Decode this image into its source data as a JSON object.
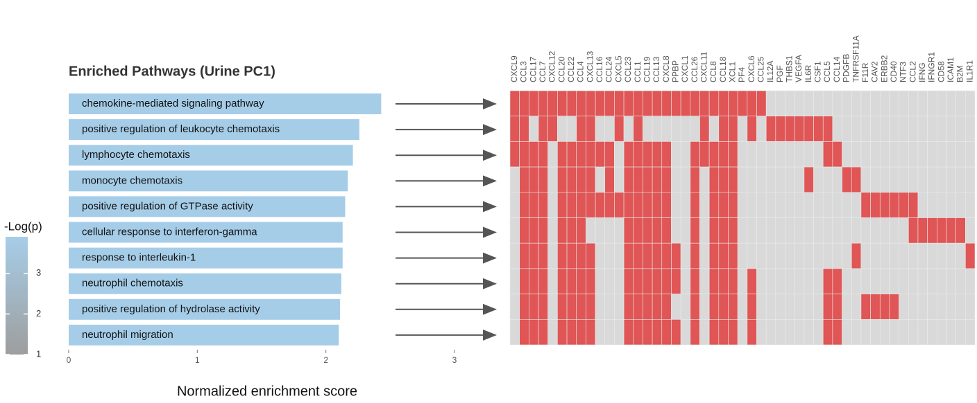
{
  "chart_data": [
    {
      "type": "barh",
      "title": "Enriched Pathways (Urine PC1)",
      "xlabel": "Normalized enrichment score",
      "categories": [
        "chemokine-mediated signaling pathway",
        "positive regulation of leukocyte chemotaxis",
        "lymphocyte chemotaxis",
        "monocyte chemotaxis",
        "positive regulation of GTPase activity",
        "cellular response to interferon-gamma",
        "response to interleukin-1",
        "neutrophil chemotaxis",
        "positive regulation of hydrolase activity",
        "neutrophil migration"
      ],
      "values": [
        2.43,
        2.26,
        2.21,
        2.17,
        2.15,
        2.13,
        2.13,
        2.12,
        2.11,
        2.1
      ],
      "color": "#a6cde8",
      "xlim": [
        0,
        3
      ],
      "xticks": [
        0,
        1,
        2,
        3
      ],
      "legend_title": "-Log(p)",
      "clim": [
        1,
        3.9
      ],
      "cticks": [
        1,
        2,
        3
      ],
      "ccolors": [
        "#9e9e9e",
        "#a6cde8"
      ]
    },
    {
      "type": "heatmap",
      "columns": [
        "CXCL9",
        "CCL3",
        "CCL17",
        "CCL7",
        "CXCL12",
        "CCL20",
        "CCL22",
        "CCL4",
        "CXCL13",
        "CCL16",
        "CCL24",
        "CXCL5",
        "CCL23",
        "CCL1",
        "CCL19",
        "CCL13",
        "CXCL8",
        "PPBP",
        "CXCL1",
        "CCL26",
        "CXCL11",
        "CCL8",
        "CCL18",
        "XCL1",
        "PF4",
        "CXCL6",
        "CCL25",
        "IL12A",
        "PGF",
        "THBS1",
        "VEGFA",
        "IL6R",
        "CSF1",
        "CCL5",
        "CCL14",
        "PDGFB",
        "TNFRSF11A",
        "F11R",
        "CAV2",
        "ERBB2",
        "CD40",
        "NTF3",
        "CCL2",
        "IFNG",
        "IFNGR1",
        "CD58",
        "ICAM1",
        "B2M",
        "IL1R1"
      ],
      "colors": [
        "#d9d9d9",
        "#e05555"
      ],
      "values": [
        [
          1,
          1,
          1,
          1,
          1,
          1,
          1,
          1,
          1,
          1,
          1,
          1,
          1,
          1,
          1,
          1,
          1,
          1,
          1,
          1,
          1,
          1,
          1,
          1,
          1,
          1,
          1,
          0,
          0,
          0,
          0,
          0,
          0,
          0,
          0,
          0,
          0,
          0,
          0,
          0,
          0,
          0,
          0,
          0,
          0,
          0,
          0,
          0,
          0
        ],
        [
          1,
          1,
          0,
          1,
          1,
          0,
          0,
          1,
          1,
          0,
          0,
          1,
          0,
          1,
          0,
          0,
          0,
          0,
          0,
          0,
          1,
          0,
          1,
          1,
          0,
          1,
          0,
          1,
          1,
          1,
          1,
          1,
          1,
          1,
          0,
          0,
          0,
          0,
          0,
          0,
          0,
          0,
          0,
          0,
          0,
          0,
          0,
          0,
          0
        ],
        [
          1,
          1,
          1,
          1,
          0,
          1,
          1,
          1,
          1,
          1,
          1,
          0,
          1,
          1,
          1,
          1,
          1,
          0,
          0,
          1,
          1,
          1,
          1,
          1,
          0,
          0,
          0,
          0,
          0,
          0,
          0,
          0,
          0,
          1,
          1,
          0,
          0,
          0,
          0,
          0,
          0,
          0,
          0,
          0,
          0,
          0,
          0,
          0,
          0
        ],
        [
          0,
          1,
          1,
          1,
          0,
          1,
          1,
          1,
          1,
          0,
          1,
          0,
          1,
          1,
          1,
          1,
          1,
          0,
          0,
          1,
          0,
          1,
          1,
          1,
          0,
          0,
          0,
          0,
          0,
          0,
          0,
          1,
          0,
          0,
          0,
          1,
          1,
          0,
          0,
          0,
          0,
          0,
          0,
          0,
          0,
          0,
          0,
          0,
          0
        ],
        [
          0,
          1,
          1,
          1,
          0,
          1,
          1,
          1,
          1,
          1,
          1,
          1,
          1,
          1,
          1,
          1,
          1,
          0,
          0,
          1,
          0,
          1,
          1,
          1,
          0,
          0,
          0,
          0,
          0,
          0,
          0,
          0,
          0,
          0,
          0,
          0,
          0,
          1,
          1,
          1,
          1,
          1,
          1,
          0,
          0,
          0,
          0,
          0,
          0
        ],
        [
          0,
          1,
          1,
          1,
          0,
          1,
          1,
          1,
          0,
          0,
          0,
          0,
          1,
          1,
          1,
          1,
          1,
          0,
          0,
          1,
          0,
          1,
          1,
          1,
          0,
          0,
          0,
          0,
          0,
          0,
          0,
          0,
          0,
          0,
          0,
          0,
          0,
          0,
          0,
          0,
          0,
          0,
          1,
          1,
          1,
          1,
          1,
          1,
          0
        ],
        [
          0,
          1,
          1,
          1,
          0,
          1,
          1,
          1,
          1,
          0,
          0,
          0,
          1,
          1,
          1,
          1,
          1,
          1,
          0,
          1,
          0,
          1,
          1,
          1,
          0,
          0,
          0,
          0,
          0,
          0,
          0,
          0,
          0,
          0,
          0,
          0,
          1,
          0,
          0,
          0,
          0,
          0,
          0,
          0,
          0,
          0,
          0,
          0,
          1
        ],
        [
          0,
          1,
          1,
          1,
          0,
          1,
          1,
          1,
          1,
          0,
          0,
          0,
          1,
          1,
          1,
          1,
          1,
          1,
          0,
          1,
          0,
          1,
          1,
          1,
          0,
          1,
          0,
          0,
          0,
          0,
          0,
          0,
          0,
          1,
          1,
          0,
          0,
          0,
          0,
          0,
          0,
          0,
          0,
          0,
          0,
          0,
          0,
          0,
          0
        ],
        [
          0,
          1,
          1,
          1,
          0,
          1,
          1,
          1,
          1,
          0,
          0,
          0,
          1,
          1,
          1,
          1,
          1,
          0,
          0,
          1,
          0,
          1,
          1,
          1,
          0,
          1,
          0,
          0,
          0,
          0,
          0,
          0,
          0,
          1,
          1,
          0,
          0,
          1,
          1,
          1,
          1,
          0,
          0,
          0,
          0,
          0,
          0,
          0,
          0
        ],
        [
          0,
          1,
          1,
          1,
          0,
          1,
          1,
          1,
          1,
          0,
          0,
          0,
          1,
          1,
          1,
          1,
          1,
          1,
          0,
          1,
          0,
          1,
          1,
          1,
          0,
          1,
          0,
          0,
          0,
          0,
          0,
          0,
          0,
          1,
          1,
          0,
          0,
          0,
          0,
          0,
          0,
          0,
          0,
          0,
          0,
          0,
          0,
          0,
          0
        ]
      ]
    }
  ]
}
